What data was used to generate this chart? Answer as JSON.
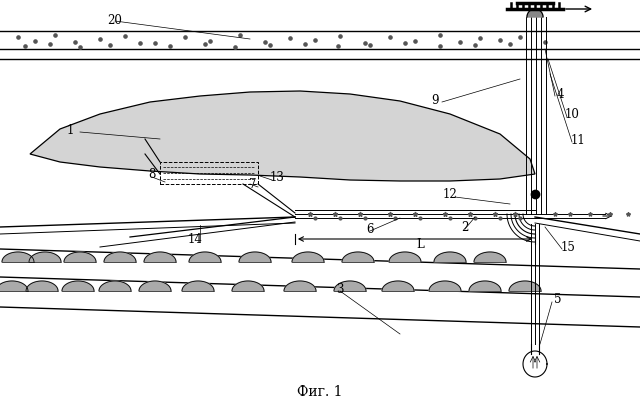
{
  "title": "Фиг. 1",
  "bg_color": "#ffffff",
  "fig_width": 6.4,
  "fig_height": 4.02,
  "dpi": 100
}
